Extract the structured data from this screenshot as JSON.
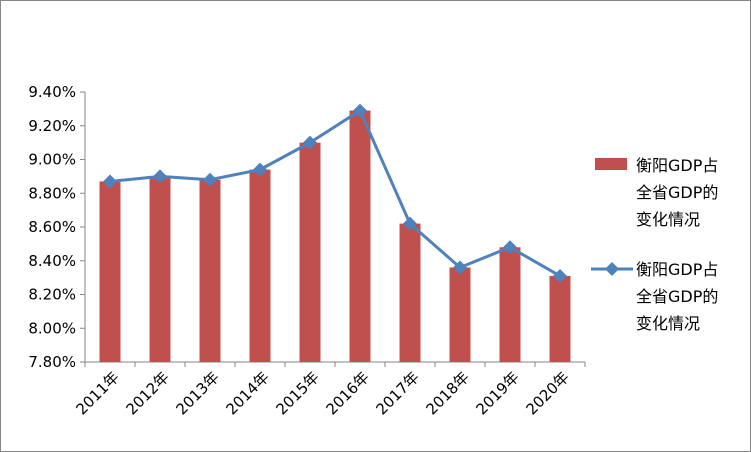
{
  "chart_data": {
    "type": "bar",
    "categories": [
      "2011年",
      "2012年",
      "2013年",
      "2014年",
      "2015年",
      "2016年",
      "2017年",
      "2018年",
      "2019年",
      "2020年"
    ],
    "series": [
      {
        "name": "衡阳GDP占全省GDP的变化情况",
        "render": "bar",
        "color": "#c0504d",
        "values": [
          8.87,
          8.9,
          8.88,
          8.94,
          9.1,
          9.29,
          8.62,
          8.36,
          8.48,
          8.31
        ]
      },
      {
        "name": "衡阳GDP占全省GDP的变化情况",
        "render": "line",
        "color": "#4f81bd",
        "marker": "diamond",
        "values": [
          8.87,
          8.9,
          8.88,
          8.94,
          9.1,
          9.29,
          8.62,
          8.36,
          8.48,
          8.31
        ]
      }
    ],
    "yticks": [
      "7.80%",
      "8.00%",
      "8.20%",
      "8.40%",
      "8.60%",
      "8.80%",
      "9.00%",
      "9.20%",
      "9.40%"
    ],
    "ylim": [
      7.8,
      9.4
    ],
    "unit": "%",
    "grid": false,
    "legend": {
      "position": "right",
      "entries": [
        {
          "lines": [
            "衡阳GDP占",
            "全省GDP的",
            "变化情况"
          ]
        },
        {
          "lines": [
            "衡阳GDP占",
            "全省GDP的",
            "变化情况"
          ]
        }
      ]
    }
  }
}
